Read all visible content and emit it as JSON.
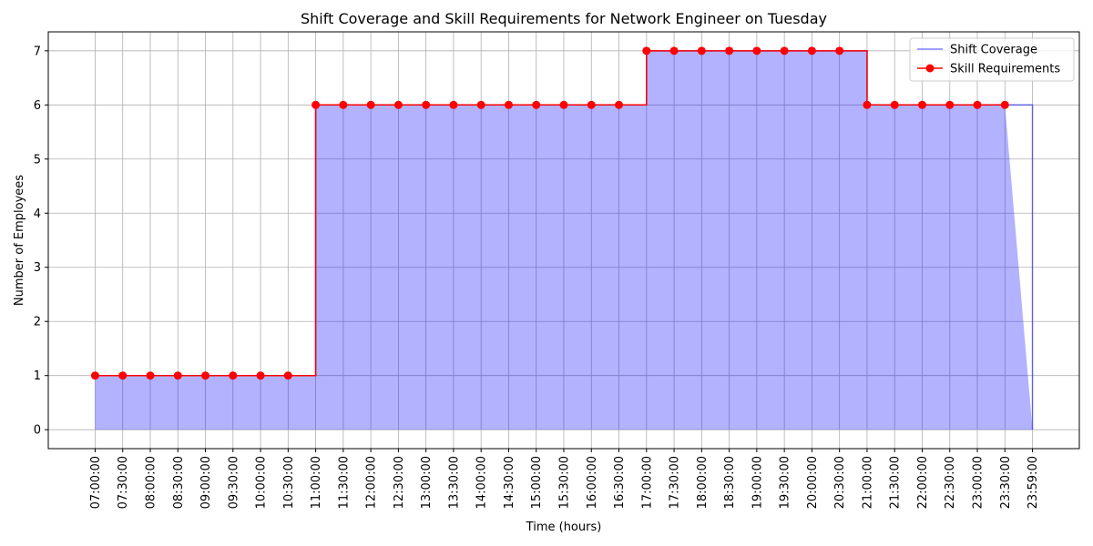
{
  "chart_data": {
    "type": "line",
    "title": "Shift Coverage and Skill Requirements for Network Engineer on Tuesday",
    "xlabel": "Time (hours)",
    "ylabel": "Number of Employees",
    "categories": [
      "07:00:00",
      "07:30:00",
      "08:00:00",
      "08:30:00",
      "09:00:00",
      "09:30:00",
      "10:00:00",
      "10:30:00",
      "11:00:00",
      "11:30:00",
      "12:00:00",
      "12:30:00",
      "13:00:00",
      "13:30:00",
      "14:00:00",
      "14:30:00",
      "15:00:00",
      "15:30:00",
      "16:00:00",
      "16:30:00",
      "17:00:00",
      "17:30:00",
      "18:00:00",
      "18:30:00",
      "19:00:00",
      "19:30:00",
      "20:00:00",
      "20:30:00",
      "21:00:00",
      "21:30:00",
      "22:00:00",
      "22:30:00",
      "23:00:00",
      "23:30:00",
      "23:59:00"
    ],
    "series": [
      {
        "name": "Shift Coverage",
        "color": "#0000ff",
        "values": [
          1,
          1,
          1,
          1,
          1,
          1,
          1,
          1,
          6,
          6,
          6,
          6,
          6,
          6,
          6,
          6,
          6,
          6,
          6,
          6,
          7,
          7,
          7,
          7,
          7,
          7,
          7,
          7,
          6,
          6,
          6,
          6,
          6,
          6,
          0
        ]
      },
      {
        "name": "Skill Requirements",
        "color": "#ff0000",
        "values": [
          1,
          1,
          1,
          1,
          1,
          1,
          1,
          1,
          6,
          6,
          6,
          6,
          6,
          6,
          6,
          6,
          6,
          6,
          6,
          6,
          7,
          7,
          7,
          7,
          7,
          7,
          7,
          7,
          6,
          6,
          6,
          6,
          6,
          6,
          null
        ]
      }
    ],
    "ylim": [
      -0.35,
      7.35
    ],
    "yticks": [
      0,
      1,
      2,
      3,
      4,
      5,
      6,
      7
    ],
    "grid": true,
    "legend": "upper right"
  }
}
